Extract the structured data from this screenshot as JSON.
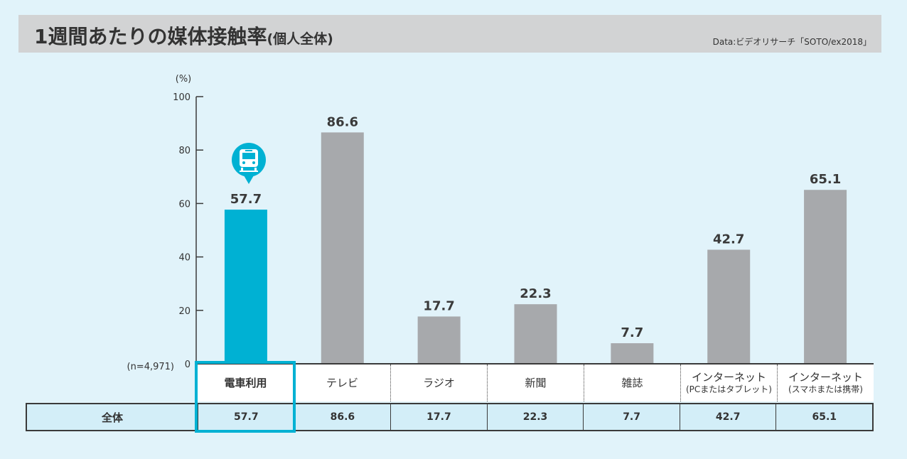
{
  "header": {
    "title": "1週間あたりの媒体接触率",
    "subtitle": "(個人全体)",
    "source": "Data:ビデオリサーチ「SOTO/ex2018」"
  },
  "chart_data": {
    "type": "bar",
    "ylabel": "(%)",
    "ylim": [
      0,
      100
    ],
    "yticks": [
      0,
      20,
      40,
      60,
      80,
      100
    ],
    "sample_note": "(n=4,971)",
    "categories": [
      {
        "label": "電車利用",
        "sub": ""
      },
      {
        "label": "テレビ",
        "sub": ""
      },
      {
        "label": "ラジオ",
        "sub": ""
      },
      {
        "label": "新聞",
        "sub": ""
      },
      {
        "label": "雑誌",
        "sub": ""
      },
      {
        "label": "インターネット",
        "sub": "(PCまたはタブレット)"
      },
      {
        "label": "インターネット",
        "sub": "(スマホまたは携帯)"
      }
    ],
    "values": [
      57.7,
      86.6,
      17.7,
      22.3,
      7.7,
      42.7,
      65.1
    ],
    "value_labels": [
      "57.7",
      "86.6",
      "17.7",
      "22.3",
      "7.7",
      "42.7",
      "65.1"
    ],
    "highlight_index": 0,
    "colors": {
      "highlight": "#00b1d3",
      "default": "#a7a9ac"
    },
    "highlight_icon": "train-icon"
  },
  "table": {
    "row_label": "全体",
    "values": [
      "57.7",
      "86.6",
      "17.7",
      "22.3",
      "7.7",
      "42.7",
      "65.1"
    ]
  }
}
